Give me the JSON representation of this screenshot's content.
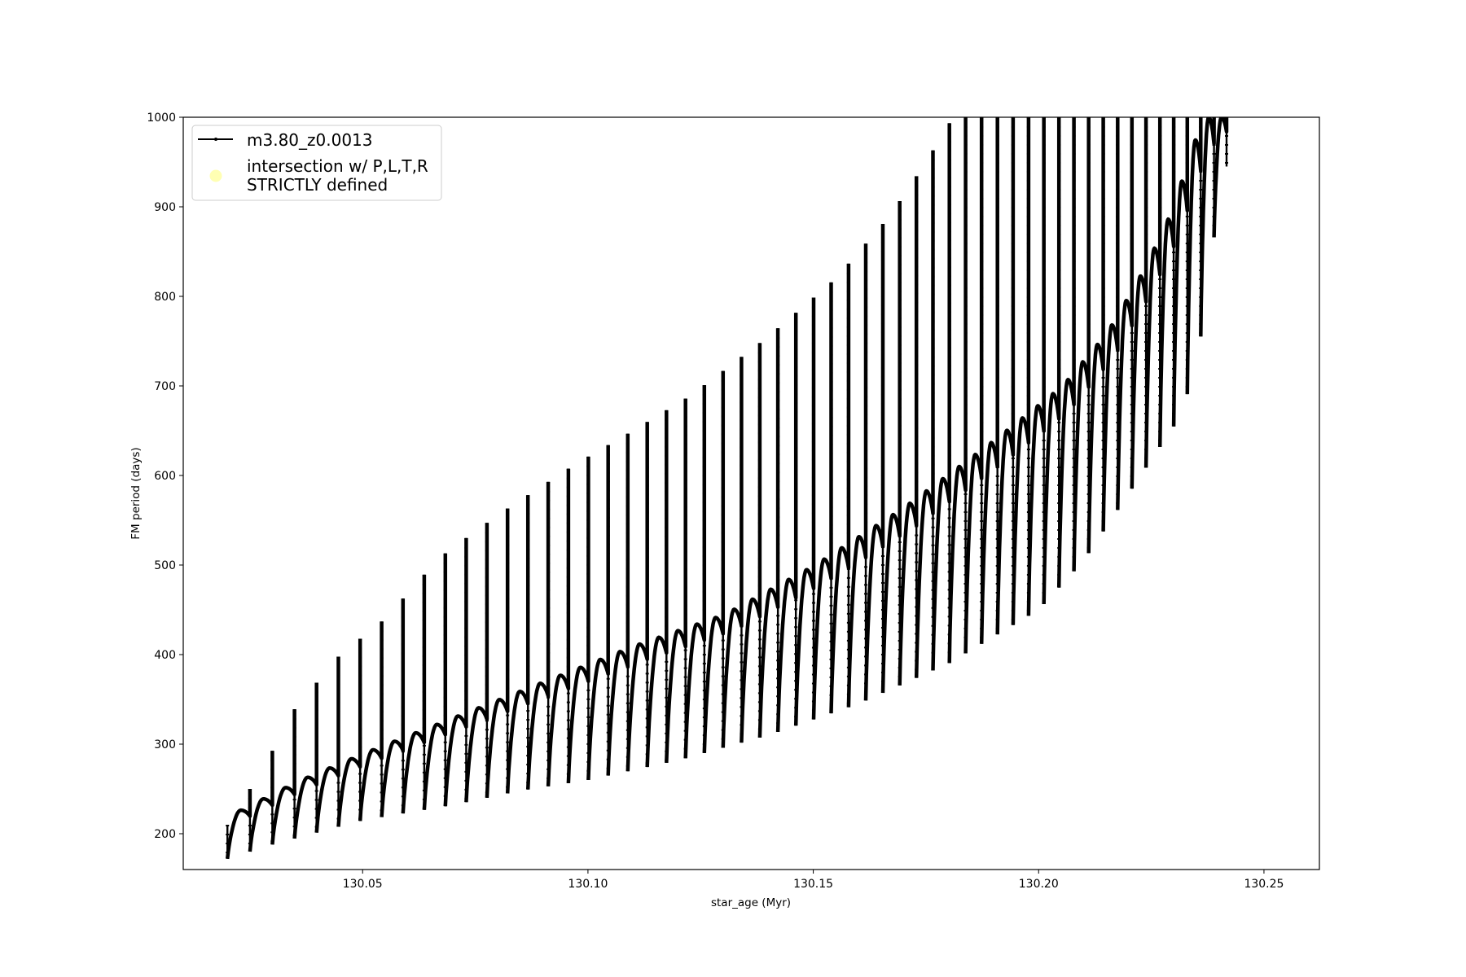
{
  "chart_data": {
    "type": "line",
    "title": "",
    "xlabel": "star_age (Myr)",
    "ylabel": "FM period (days)",
    "xlim": [
      130.0102,
      130.2623
    ],
    "ylim": [
      160,
      1000
    ],
    "xticks": [
      130.05,
      130.1,
      130.15,
      130.2,
      130.25
    ],
    "xtick_labels": [
      "130.05",
      "130.10",
      "130.15",
      "130.20",
      "130.25"
    ],
    "yticks": [
      200,
      300,
      400,
      500,
      600,
      700,
      800,
      900,
      1000
    ],
    "ytick_labels": [
      "200",
      "300",
      "400",
      "500",
      "600",
      "700",
      "800",
      "900",
      "1000"
    ],
    "grid": false,
    "legend_position": "top-left",
    "series": [
      {
        "name": "m3.80_z0.0013",
        "color": "#000000",
        "marker": "dot",
        "first_cycle_age": 130.02,
        "last_cycle_age": 130.2417,
        "cycle_spacing": [
          [
            130.02,
            0.005
          ],
          [
            130.1,
            0.0044
          ],
          [
            130.18,
            0.0036
          ],
          [
            130.24,
            0.0029
          ]
        ],
        "cycle_plateau": [
          [
            130.02,
            205
          ],
          [
            130.022,
            225
          ],
          [
            130.035,
            258
          ],
          [
            130.05,
            290
          ],
          [
            130.07,
            330
          ],
          [
            130.09,
            370
          ],
          [
            130.11,
            410
          ],
          [
            130.13,
            445
          ],
          [
            130.15,
            500
          ],
          [
            130.17,
            565
          ],
          [
            130.19,
            640
          ],
          [
            130.205,
            700
          ],
          [
            130.215,
            760
          ],
          [
            130.222,
            820
          ],
          [
            130.228,
            880
          ],
          [
            130.233,
            950
          ],
          [
            130.236,
            1000
          ],
          [
            130.2417,
            1000
          ]
        ],
        "spike_top": [
          [
            130.02,
            210
          ],
          [
            130.028,
            274
          ],
          [
            130.035,
            340
          ],
          [
            130.045,
            400
          ],
          [
            130.055,
            440
          ],
          [
            130.067,
            508
          ],
          [
            130.08,
            556
          ],
          [
            130.097,
            612
          ],
          [
            130.11,
            650
          ],
          [
            130.123,
            690
          ],
          [
            130.14,
            755
          ],
          [
            130.155,
            820
          ],
          [
            130.167,
            890
          ],
          [
            130.175,
            950
          ],
          [
            130.181,
            1000
          ],
          [
            130.2417,
            1000
          ]
        ],
        "spike_bottom": [
          [
            130.02,
            172
          ],
          [
            130.03,
            188
          ],
          [
            130.05,
            215
          ],
          [
            130.07,
            232
          ],
          [
            130.085,
            248
          ],
          [
            130.1,
            260
          ],
          [
            130.12,
            282
          ],
          [
            130.14,
            310
          ],
          [
            130.16,
            345
          ],
          [
            130.18,
            390
          ],
          [
            130.2,
            450
          ],
          [
            130.21,
            505
          ],
          [
            130.22,
            580
          ],
          [
            130.23,
            655
          ],
          [
            130.235,
            715
          ],
          [
            130.238,
            840
          ],
          [
            130.2417,
            945
          ]
        ]
      },
      {
        "name": "intersection w/ P,L,T,R\nSTRICTLY defined",
        "color": "#ffffb3",
        "marker": "circle",
        "points": []
      }
    ],
    "legend": {
      "entries": [
        "m3.80_z0.0013",
        "intersection w/ P,L,T,R",
        "STRICTLY defined"
      ]
    }
  }
}
